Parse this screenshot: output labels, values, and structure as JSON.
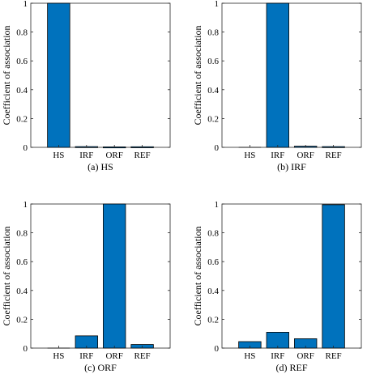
{
  "chart_data": [
    {
      "type": "bar",
      "caption": "(a) HS",
      "categories": [
        "HS",
        "IRF",
        "ORF",
        "REF"
      ],
      "values": [
        1.0,
        0.005,
        0.003,
        0.004
      ],
      "ylabel": "Coefficient of association",
      "ylim": [
        0,
        1
      ],
      "yticks": [
        "0",
        "0.2",
        "0.4",
        "0.6",
        "0.8",
        "1"
      ],
      "bar_color": "#0072BD",
      "grid": false
    },
    {
      "type": "bar",
      "caption": "(b) IRF",
      "categories": [
        "HS",
        "IRF",
        "ORF",
        "REF"
      ],
      "values": [
        0.0,
        1.0,
        0.008,
        0.005
      ],
      "ylabel": "Coefficient of association",
      "ylim": [
        0,
        1
      ],
      "yticks": [
        "0",
        "0.2",
        "0.4",
        "0.6",
        "0.8",
        "1"
      ],
      "bar_color": "#0072BD",
      "grid": false
    },
    {
      "type": "bar",
      "caption": "(c) ORF",
      "categories": [
        "HS",
        "IRF",
        "ORF",
        "REF"
      ],
      "values": [
        0.0,
        0.085,
        1.0,
        0.025
      ],
      "ylabel": "Coefficient of association",
      "ylim": [
        0,
        1
      ],
      "yticks": [
        "0",
        "0.2",
        "0.4",
        "0.6",
        "0.8",
        "1"
      ],
      "bar_color": "#0072BD",
      "grid": false
    },
    {
      "type": "bar",
      "caption": "(d) REF",
      "categories": [
        "HS",
        "IRF",
        "ORF",
        "REF"
      ],
      "values": [
        0.045,
        0.11,
        0.065,
        0.995
      ],
      "ylabel": "Coefficient of association",
      "ylim": [
        0,
        1
      ],
      "yticks": [
        "0",
        "0.2",
        "0.4",
        "0.6",
        "0.8",
        "1"
      ],
      "bar_color": "#0072BD",
      "grid": false
    }
  ]
}
